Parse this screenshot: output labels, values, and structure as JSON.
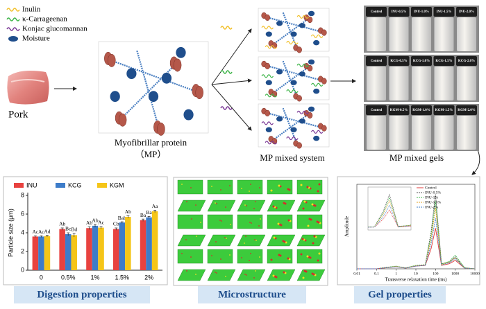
{
  "legend": [
    {
      "label": "Inulin",
      "color": "#f2c12e"
    },
    {
      "label": "κ-Carrageenan",
      "color": "#3fb54a"
    },
    {
      "label": "Konjac glucomannan",
      "color": "#7b3a96"
    },
    {
      "label": "Moisture",
      "color": "#1f4e8c"
    }
  ],
  "labels": {
    "pork": "Pork",
    "mp_line1": "Myofibrillar protein",
    "mp_line2": "（MP）",
    "mixed_system": "MP mixed system",
    "mixed_gels": "MP mixed gels"
  },
  "gel_photos": [
    [
      "Control",
      "INU-0.5%",
      "INU-1.0%",
      "INU-1.5%",
      "INU-2.0%"
    ],
    [
      "Control",
      "KCG-0.5%",
      "KCG-1.0%",
      "KCG-1.5%",
      "KCG-2.0%"
    ],
    [
      "Control",
      "KGM-0.5%",
      "KGM-1.0%",
      "KGM-1.5%",
      "KGM-2.0%"
    ]
  ],
  "panels": {
    "digestion": "Digestion  properties",
    "microstructure": "Microstructure",
    "gel": "Gel properties"
  },
  "chart_data": [
    {
      "type": "bar",
      "y_label": "Particle size (μm)",
      "categories": [
        "0",
        "0.5%",
        "1%",
        "1.5%",
        "2%"
      ],
      "ylim": [
        0,
        8
      ],
      "yticks": [
        0,
        2,
        4,
        6,
        8
      ],
      "legend": "top",
      "series": [
        {
          "name": "INU",
          "color": "#e8423f",
          "values": [
            3.6,
            4.4,
            4.5,
            4.4,
            5.35
          ],
          "errors": [
            0.08,
            0.12,
            0.15,
            0.12,
            0.12
          ],
          "letters": [
            "Ac",
            "Ab",
            "Ab",
            "Cb",
            "Ba"
          ]
        },
        {
          "name": "KCG",
          "color": "#3d7cc9",
          "values": [
            3.6,
            3.85,
            4.75,
            5.1,
            5.65
          ],
          "errors": [
            0.08,
            0.15,
            0.15,
            0.08,
            0.1
          ],
          "letters": [
            "Ac",
            "Bc",
            "Ab",
            "Bab",
            "Ba"
          ]
        },
        {
          "name": "KGM",
          "color": "#f5c518",
          "values": [
            3.65,
            3.75,
            4.55,
            5.7,
            6.3
          ],
          "errors": [
            0.08,
            0.2,
            0.12,
            0.12,
            0.12
          ],
          "letters": [
            "Ad",
            "Bd",
            "Ac",
            "Ab",
            "Aa"
          ]
        }
      ]
    },
    {
      "type": "line",
      "x_label": "Transverse relaxation time (ms)",
      "y_label": "Amplitude",
      "log_x": true,
      "x": [
        0.01,
        0.1,
        0.3,
        1,
        3,
        10,
        30,
        60,
        100,
        200,
        500,
        1000,
        3000,
        10000
      ],
      "xlim": [
        0.01,
        10000
      ],
      "xticks": [
        0.01,
        0.1,
        1,
        10,
        100,
        1000,
        10000
      ],
      "ylim": [
        0,
        250
      ],
      "series": [
        {
          "name": "Control",
          "color": "#e23b3b",
          "values": [
            0,
            0,
            3,
            6,
            2,
            8,
            10,
            60,
            120,
            10,
            15,
            25,
            2,
            0
          ]
        },
        {
          "name": "INU-0.5%",
          "color": "#555555",
          "values": [
            0,
            0,
            4,
            7,
            2,
            9,
            12,
            110,
            220,
            15,
            20,
            35,
            3,
            0
          ]
        },
        {
          "name": "INU-1%",
          "color": "#3fb54a",
          "values": [
            0,
            0,
            4,
            8,
            3,
            10,
            12,
            100,
            200,
            14,
            22,
            40,
            3,
            0
          ]
        },
        {
          "name": "INU-1.5%",
          "color": "#e0a020",
          "values": [
            0,
            0,
            3,
            7,
            2,
            9,
            11,
            90,
            180,
            12,
            20,
            32,
            2,
            0
          ]
        },
        {
          "name": "INU-2%",
          "color": "#3d7cc9",
          "values": [
            0,
            0,
            3,
            6,
            2,
            8,
            10,
            75,
            150,
            11,
            18,
            30,
            2,
            0
          ]
        }
      ]
    }
  ]
}
